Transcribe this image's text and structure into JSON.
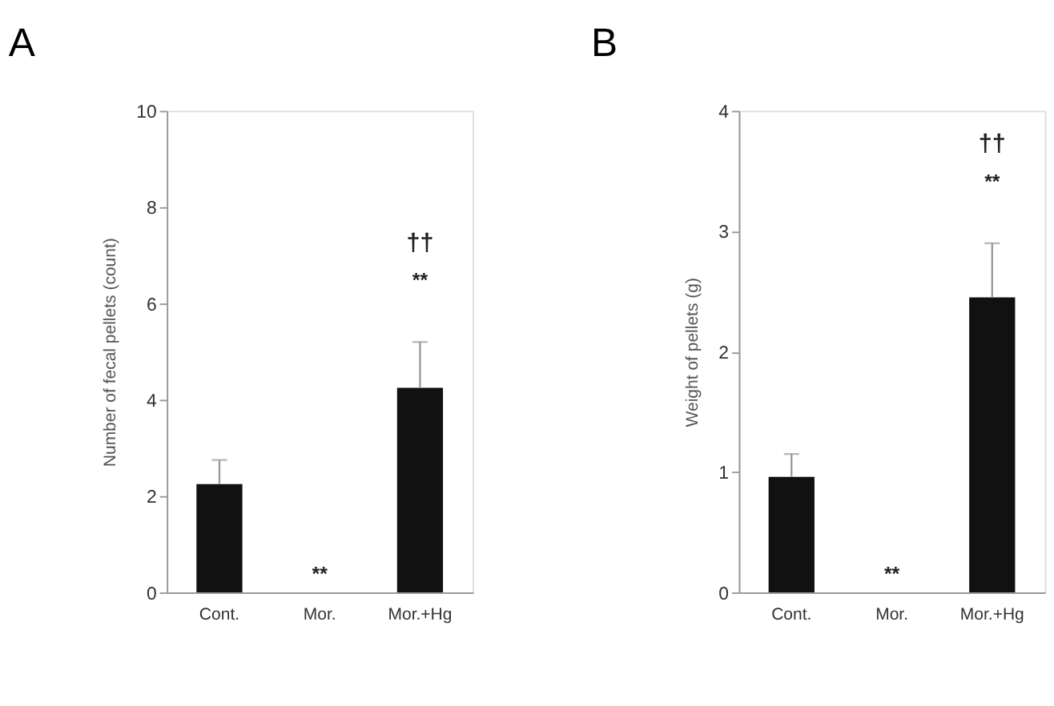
{
  "chart_data": [
    {
      "type": "bar",
      "title": "A",
      "ylabel": "Number of fecal pellets (count)",
      "categories": [
        "Cont.",
        "Mor.",
        "Mor.+Hg"
      ],
      "values": [
        2.25,
        0,
        4.25
      ],
      "errors": [
        [
          2.25,
          2.75
        ],
        null,
        [
          4.25,
          5.2
        ]
      ],
      "color": "#111111",
      "ylim": [
        0,
        10
      ],
      "yticks": [
        0,
        2,
        4,
        6,
        8,
        10
      ],
      "grid": false,
      "annotations": [
        "**",
        "**",
        "††"
      ]
    },
    {
      "type": "bar",
      "title": "B",
      "ylabel": "Weight of pellets (g)",
      "categories": [
        "Cont.",
        "Mor.",
        "Mor.+Hg"
      ],
      "values": [
        0.96,
        0,
        2.45
      ],
      "errors": [
        [
          0.96,
          1.15
        ],
        null,
        [
          2.45,
          2.9
        ]
      ],
      "color": "#111111",
      "ylim": [
        0,
        4
      ],
      "yticks": [
        0,
        1,
        2,
        3,
        4
      ],
      "grid": false,
      "annotations": [
        "**",
        "**",
        "††"
      ]
    }
  ]
}
